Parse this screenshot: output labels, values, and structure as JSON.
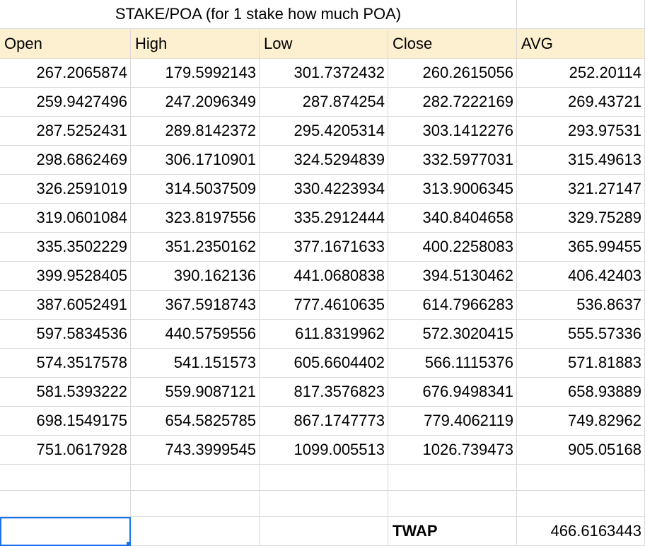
{
  "title": "STAKE/POA (for 1 stake how much POA)",
  "headers": [
    "Open",
    "High",
    "Low",
    "Close",
    "AVG"
  ],
  "rows": [
    [
      "267.2065874",
      "179.5992143",
      "301.7372432",
      "260.2615056",
      "252.20114"
    ],
    [
      "259.9427496",
      "247.2096349",
      "287.874254",
      "282.7222169",
      "269.43721"
    ],
    [
      "287.5252431",
      "289.8142372",
      "295.4205314",
      "303.1412276",
      "293.97531"
    ],
    [
      "298.6862469",
      "306.1710901",
      "324.5294839",
      "332.5977031",
      "315.49613"
    ],
    [
      "326.2591019",
      "314.5037509",
      "330.4223934",
      "313.9006345",
      "321.27147"
    ],
    [
      "319.0601084",
      "323.8197556",
      "335.2912444",
      "340.8404658",
      "329.75289"
    ],
    [
      "335.3502229",
      "351.2350162",
      "377.1671633",
      "400.2258083",
      "365.99455"
    ],
    [
      "399.9528405",
      "390.162136",
      "441.0680838",
      "394.5130462",
      "406.42403"
    ],
    [
      "387.6052491",
      "367.5918743",
      "777.4610635",
      "614.7966283",
      "536.8637"
    ],
    [
      "597.5834536",
      "440.5759556",
      "611.8319962",
      "572.3020415",
      "555.57336"
    ],
    [
      "574.3517578",
      "541.151573",
      "605.6604402",
      "566.1115376",
      "571.81883"
    ],
    [
      "581.5393222",
      "559.9087121",
      "817.3576823",
      "676.9498341",
      "658.93889"
    ],
    [
      "698.1549175",
      "654.5825785",
      "867.1747773",
      "779.4062119",
      "749.82962"
    ],
    [
      "751.0617928",
      "743.3999545",
      "1099.005513",
      "1026.739473",
      "905.05168"
    ]
  ],
  "twap": {
    "label": "TWAP",
    "value": "466.6163443"
  },
  "colors": {
    "header_bg": "#fdf0d0",
    "gridline": "#d9d9d9",
    "selection": "#1a73e8"
  }
}
